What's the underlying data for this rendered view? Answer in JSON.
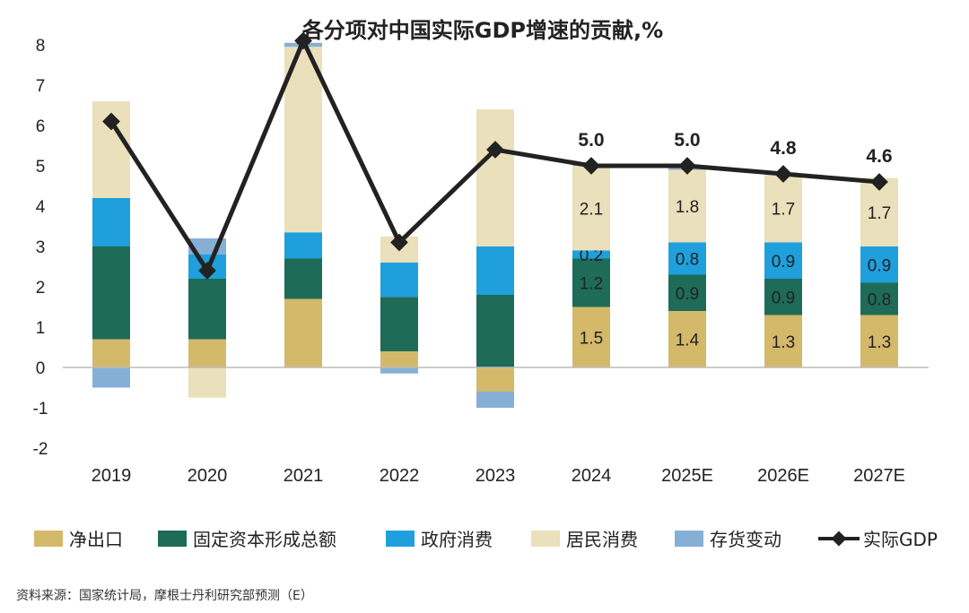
{
  "chart_data": {
    "type": "bar",
    "title": "各分项对中国实际GDP增速的贡献,%",
    "categories": [
      "2019",
      "2020",
      "2021",
      "2022",
      "2023",
      "2024",
      "2025E",
      "2026E",
      "2027E"
    ],
    "ylim": [
      -2,
      8
    ],
    "yticks": [
      "-2",
      "-1",
      "0",
      "1",
      "2",
      "3",
      "4",
      "5",
      "6",
      "7",
      "8"
    ],
    "series": [
      {
        "name": "净出口",
        "color": "#d4b96a",
        "values": [
          0.7,
          0.7,
          1.7,
          0.4,
          -0.6,
          1.5,
          1.4,
          1.3,
          1.3
        ]
      },
      {
        "name": "固定资本形成总额",
        "color": "#1e6b57",
        "values": [
          2.3,
          1.5,
          1.0,
          1.35,
          1.8,
          1.2,
          0.9,
          0.9,
          0.8
        ]
      },
      {
        "name": "政府消费",
        "color": "#1fa0dc",
        "values": [
          1.2,
          0.6,
          0.65,
          0.85,
          1.2,
          0.2,
          0.8,
          0.9,
          0.9
        ]
      },
      {
        "name": "居民消费",
        "color": "#ebe0bc",
        "values": [
          2.4,
          -0.75,
          4.6,
          0.65,
          3.4,
          2.1,
          1.8,
          1.7,
          1.7
        ]
      },
      {
        "name": "存货变动",
        "color": "#86afd6",
        "values": [
          -0.5,
          0.4,
          0.1,
          -0.15,
          -0.4,
          0.05,
          0.05,
          0.0,
          0.0
        ]
      }
    ],
    "line": {
      "name": "实际GDP",
      "color": "#222222",
      "values": [
        6.1,
        2.4,
        8.1,
        3.1,
        5.4,
        5.0,
        5.0,
        4.8,
        4.6
      ]
    },
    "labeled_from_index": 5,
    "gdp_labels": [
      "",
      "",
      "",
      "",
      "",
      "5.0",
      "5.0",
      "4.8",
      "4.6"
    ],
    "legend": "bottom",
    "source": "资料来源：国家统计局，摩根士丹利研究部预测（E）"
  }
}
